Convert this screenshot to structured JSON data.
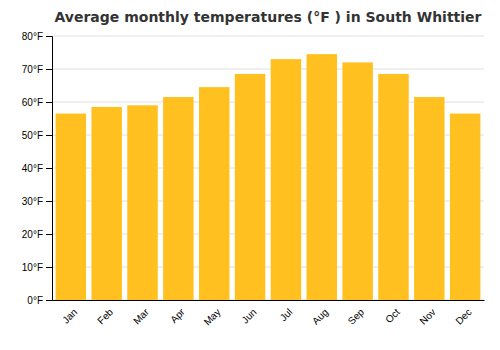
{
  "chart_data": {
    "type": "bar",
    "title": "Average monthly temperatures (°F ) in South Whittier",
    "categories": [
      "Jan",
      "Feb",
      "Mar",
      "Apr",
      "May",
      "Jun",
      "Jul",
      "Aug",
      "Sep",
      "Oct",
      "Nov",
      "Dec"
    ],
    "values": [
      56.5,
      58.5,
      59.0,
      61.5,
      64.5,
      68.5,
      73.0,
      74.5,
      72.0,
      68.5,
      61.5,
      56.5
    ],
    "color": "#FFC020",
    "ylim": [
      0,
      80
    ],
    "yticks": [
      {
        "value": 0,
        "label": "0°F"
      },
      {
        "value": 10,
        "label": "10°F"
      },
      {
        "value": 20,
        "label": "20°F"
      },
      {
        "value": 30,
        "label": "30°F"
      },
      {
        "value": 40,
        "label": "40°F"
      },
      {
        "value": 50,
        "label": "50°F"
      },
      {
        "value": 60,
        "label": "60°F"
      },
      {
        "value": 70,
        "label": "70°F"
      },
      {
        "value": 80,
        "label": "80°F"
      }
    ],
    "grid": true
  }
}
